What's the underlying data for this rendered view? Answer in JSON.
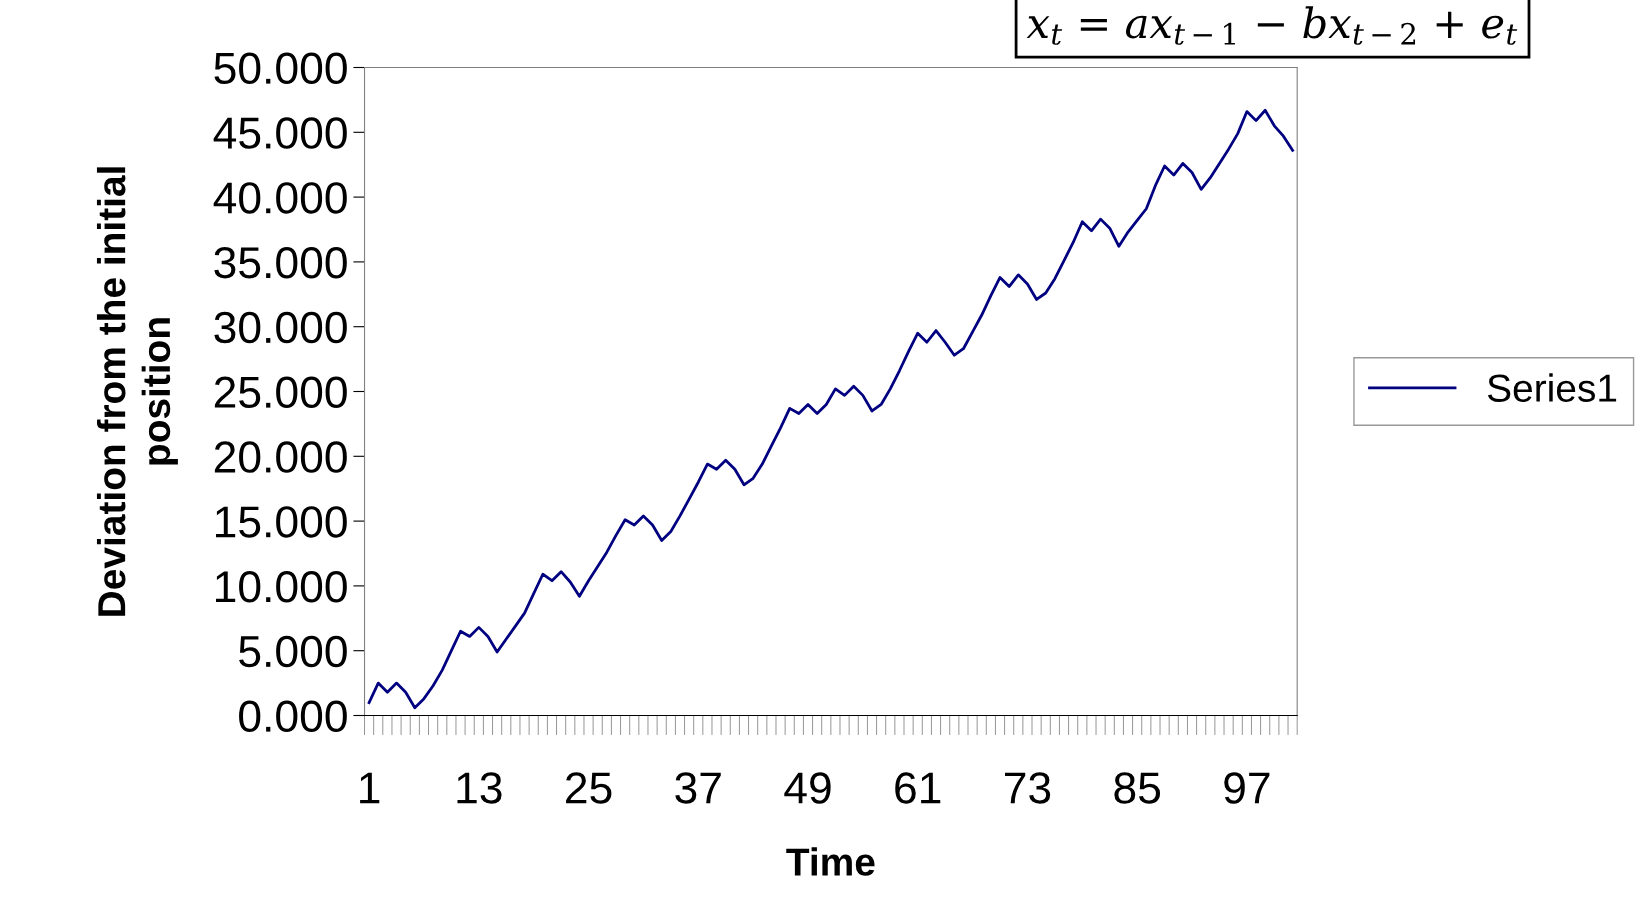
{
  "chart_data": {
    "type": "line",
    "xlabel": "Time",
    "ylabel": "Deviation from the initial\nposition",
    "annotations": [
      "x$_{t}$ = ax$_{t−1}$ − bx$_{t−2}$ + e$_{t}$"
    ],
    "categories": [
      "1",
      null,
      null,
      null,
      null,
      null,
      null,
      null,
      null,
      null,
      null,
      null,
      "13",
      null,
      null,
      null,
      null,
      null,
      null,
      null,
      null,
      null,
      null,
      null,
      "25",
      null,
      null,
      null,
      null,
      null,
      null,
      null,
      null,
      null,
      null,
      null,
      "37",
      null,
      null,
      null,
      null,
      null,
      null,
      null,
      null,
      null,
      null,
      null,
      "49",
      null,
      null,
      null,
      null,
      null,
      null,
      null,
      null,
      null,
      null,
      null,
      "61",
      null,
      null,
      null,
      null,
      null,
      null,
      null,
      null,
      null,
      null,
      null,
      "73",
      null,
      null,
      null,
      null,
      null,
      null,
      null,
      null,
      null,
      null,
      null,
      "85",
      null,
      null,
      null,
      null,
      null,
      null,
      null,
      null,
      null,
      null,
      null,
      "97",
      null,
      null,
      null,
      null,
      null
    ],
    "series": [
      {
        "name": "Series1",
        "color": "#000080",
        "values": [
          1.0,
          2.5,
          1.8,
          2.5,
          1.8,
          0.6,
          1.3,
          2.3,
          3.5,
          5.0,
          6.5,
          6.1,
          6.8,
          6.1,
          4.9,
          5.9,
          6.9,
          7.9,
          9.4,
          10.9,
          10.4,
          11.1,
          10.3,
          9.2,
          10.4,
          11.5,
          12.6,
          13.9,
          15.1,
          14.7,
          15.4,
          14.7,
          13.5,
          14.2,
          15.4,
          16.7,
          18.0,
          19.4,
          19.0,
          19.7,
          19.0,
          17.8,
          18.3,
          19.4,
          20.8,
          22.2,
          23.7,
          23.3,
          24.0,
          23.3,
          24.0,
          25.2,
          24.7,
          25.4,
          24.7,
          23.5,
          24.0,
          25.2,
          26.6,
          28.1,
          29.5,
          28.8,
          29.7,
          28.8,
          27.8,
          28.3,
          29.6,
          30.9,
          32.4,
          33.8,
          33.1,
          34.0,
          33.3,
          32.1,
          32.6,
          33.7,
          35.1,
          36.5,
          38.1,
          37.4,
          38.3,
          37.6,
          36.2,
          37.3,
          38.2,
          39.1,
          40.9,
          42.4,
          41.7,
          42.6,
          41.9,
          40.6,
          41.5,
          42.6,
          43.7,
          44.9,
          46.6,
          45.9,
          46.7,
          45.5,
          44.7,
          43.6
        ]
      }
    ],
    "ylim": [
      0,
      50
    ],
    "yticks": [
      {
        "value": 0,
        "label": "0.000"
      },
      {
        "value": 5,
        "label": "5.000"
      },
      {
        "value": 10,
        "label": "10.000"
      },
      {
        "value": 15,
        "label": "15.000"
      },
      {
        "value": 20,
        "label": "20.000"
      },
      {
        "value": 25,
        "label": "25.000"
      },
      {
        "value": 30,
        "label": "30.000"
      },
      {
        "value": 35,
        "label": "35.000"
      },
      {
        "value": 40,
        "label": "40.000"
      },
      {
        "value": 45,
        "label": "45.000"
      },
      {
        "value": 50,
        "label": "50.000"
      }
    ],
    "grid": false,
    "legend": "right",
    "marker": "none",
    "line_style": "solid"
  }
}
